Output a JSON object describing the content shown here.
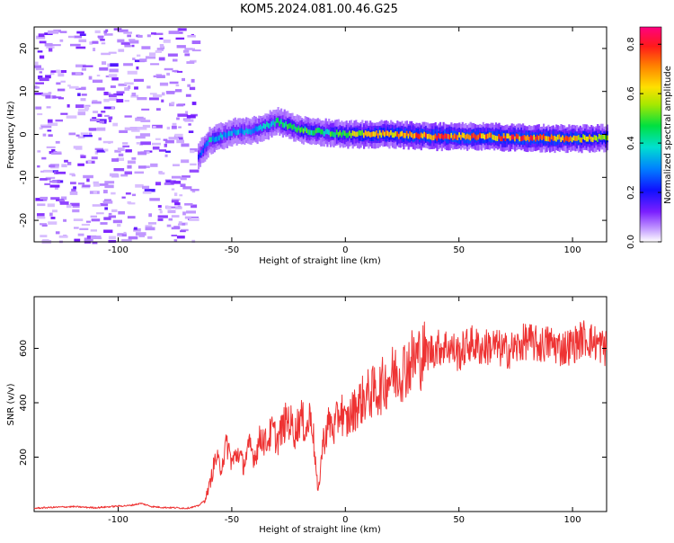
{
  "figure_title": "KOM5.2024.081.00.46.G25",
  "colors": {
    "snr_line": "#ee3333",
    "axis": "#000000"
  },
  "chart_data": [
    {
      "type": "heatmap",
      "xlabel": "Height of straight line (km)",
      "ylabel": "Frequency (Hz)",
      "xlim": [
        -137,
        115
      ],
      "ylim": [
        -25,
        25
      ],
      "xticks": [
        -100,
        -50,
        0,
        50,
        100
      ],
      "yticks": [
        -20,
        -10,
        0,
        10,
        20
      ],
      "colorbar": {
        "label": "Normalized spectral amplitude",
        "ticks": [
          0.0,
          0.2,
          0.4,
          0.6,
          0.8
        ],
        "range": [
          0,
          0.87
        ],
        "colormap": "rainbow"
      },
      "signal_band": [
        {
          "x": -65,
          "freq": -5.0,
          "amp": 0.25
        },
        {
          "x": -60,
          "freq": -1.5,
          "amp": 0.4
        },
        {
          "x": -50,
          "freq": 0.5,
          "amp": 0.35
        },
        {
          "x": -40,
          "freq": 1.0,
          "amp": 0.35
        },
        {
          "x": -30,
          "freq": 3.0,
          "amp": 0.45
        },
        {
          "x": -20,
          "freq": 1.0,
          "amp": 0.55
        },
        {
          "x": -10,
          "freq": 0.5,
          "amp": 0.45
        },
        {
          "x": 0,
          "freq": 0.0,
          "amp": 0.6
        },
        {
          "x": 20,
          "freq": 0.0,
          "amp": 0.75
        },
        {
          "x": 40,
          "freq": -0.5,
          "amp": 0.8
        },
        {
          "x": 60,
          "freq": -0.5,
          "amp": 0.78
        },
        {
          "x": 80,
          "freq": -0.8,
          "amp": 0.8
        },
        {
          "x": 100,
          "freq": -1.0,
          "amp": 0.75
        },
        {
          "x": 115,
          "freq": -0.8,
          "amp": 0.6
        }
      ]
    },
    {
      "type": "line",
      "xlabel": "Height of straight line (km)",
      "ylabel": "SNR (v/v)",
      "xlim": [
        -137,
        115
      ],
      "ylim": [
        0,
        790
      ],
      "xticks": [
        -100,
        -50,
        0,
        50,
        100
      ],
      "yticks": [
        200,
        400,
        600
      ],
      "series": [
        {
          "x": [
            -137,
            -130,
            -120,
            -110,
            -100,
            -95,
            -90,
            -85,
            -80,
            -75,
            -70,
            -65,
            -62,
            -60,
            -57,
            -55,
            -52,
            -50,
            -47,
            -45,
            -42,
            -40,
            -37,
            -35,
            -32,
            -30,
            -27,
            -25,
            -22,
            -20,
            -17,
            -15,
            -12,
            -10,
            -7,
            -5,
            -2,
            0,
            5,
            10,
            15,
            20,
            25,
            30,
            35,
            40,
            45,
            50,
            55,
            60,
            65,
            70,
            75,
            80,
            85,
            90,
            95,
            100,
            105,
            110,
            115
          ],
          "y": [
            12,
            15,
            18,
            14,
            20,
            22,
            30,
            18,
            15,
            14,
            12,
            20,
            40,
            90,
            200,
            160,
            250,
            180,
            220,
            170,
            240,
            200,
            280,
            250,
            300,
            260,
            320,
            340,
            290,
            350,
            300,
            370,
            60,
            250,
            330,
            300,
            380,
            320,
            390,
            430,
            450,
            500,
            520,
            560,
            580,
            600,
            610,
            580,
            620,
            600,
            610,
            590,
            600,
            630,
            610,
            620,
            600,
            610,
            640,
            620,
            600
          ]
        }
      ]
    }
  ]
}
